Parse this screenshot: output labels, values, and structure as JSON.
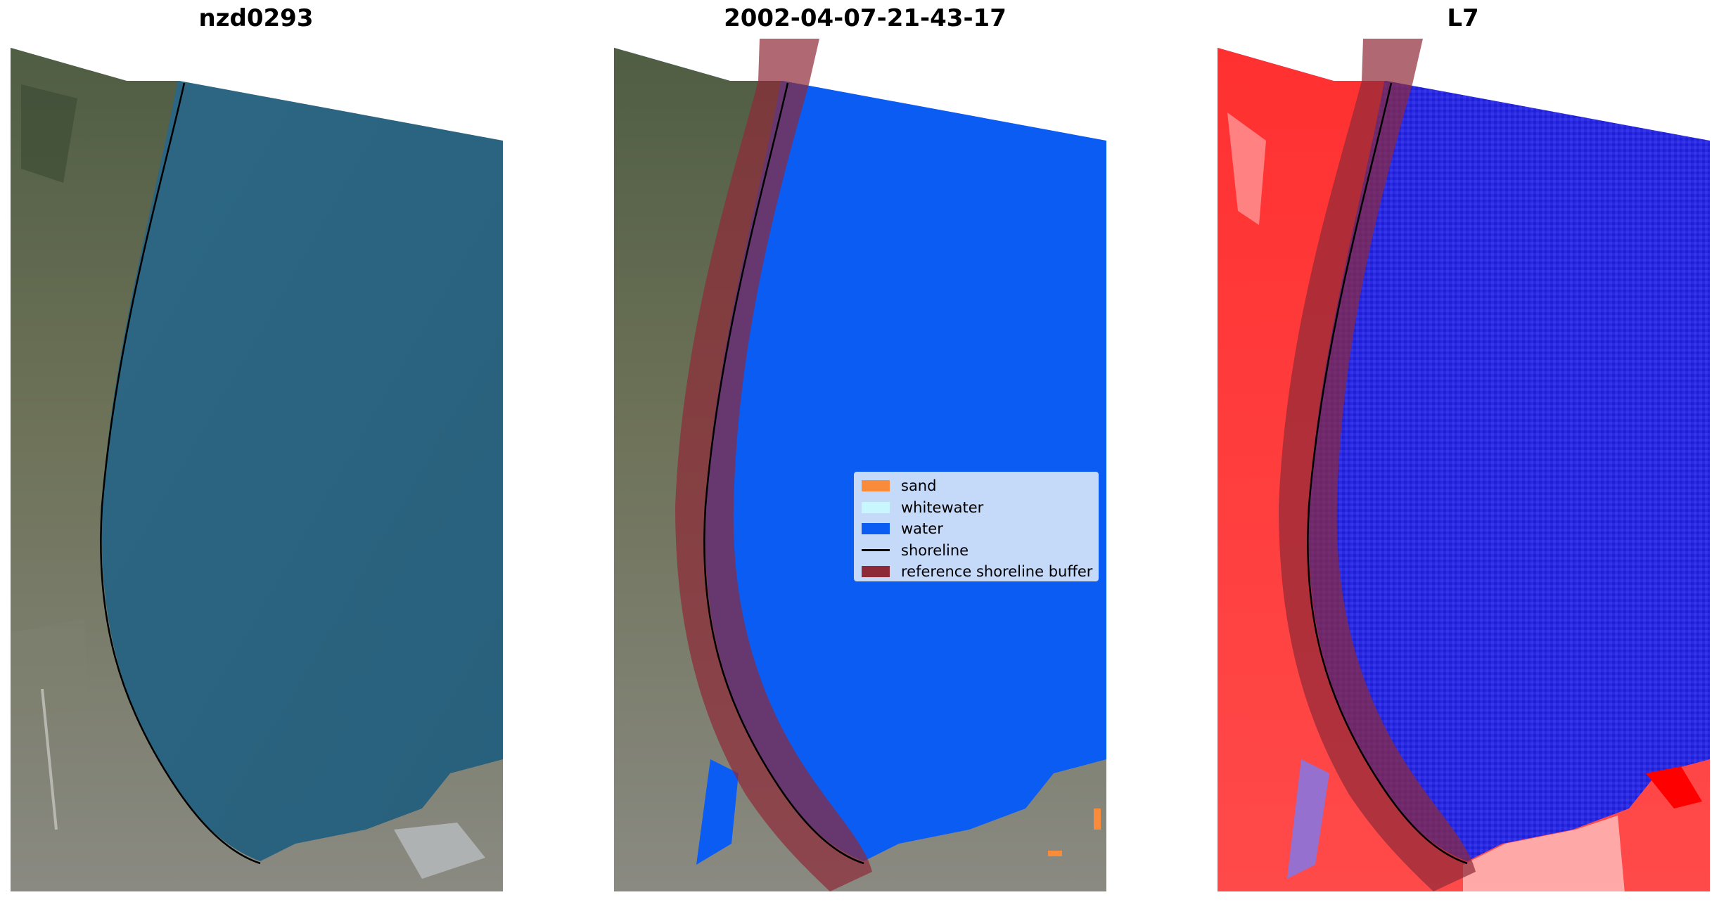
{
  "panels": [
    {
      "title": "nzd0293"
    },
    {
      "title": "2002-04-07-21-43-17"
    },
    {
      "title": "L7"
    }
  ],
  "legend": {
    "items": [
      {
        "label": "sand",
        "color": "#f98b3a",
        "kind": "patch"
      },
      {
        "label": "whitewater",
        "color": "#c8f7ff",
        "kind": "patch"
      },
      {
        "label": "water",
        "color": "#0a5cf2",
        "kind": "patch"
      },
      {
        "label": "shoreline",
        "color": "#000000",
        "kind": "line"
      },
      {
        "label": "reference shoreline buffer",
        "color": "#8e2a38",
        "kind": "patch"
      }
    ]
  },
  "colors": {
    "sea_rgb": "#2f6480",
    "land_rgb": "#5a6a4e",
    "water_class": "#0a5cf2",
    "buffer": "#8e2a38",
    "index_land": "#ff2a2a",
    "index_water": "#2020e6"
  }
}
